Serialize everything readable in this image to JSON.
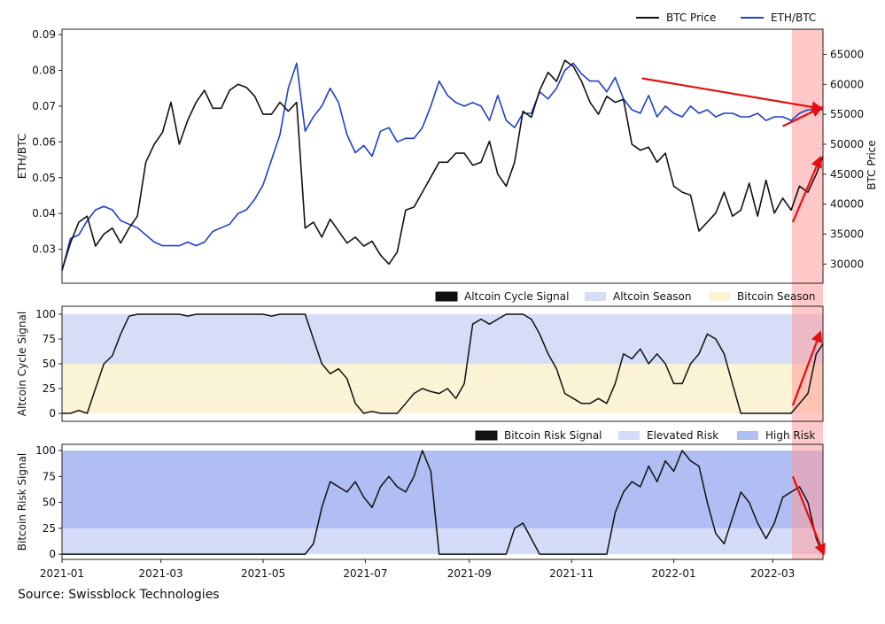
{
  "source": "Source: Swissblock Technologies",
  "colors": {
    "btc": "#111111",
    "eth": "#1f3fcc",
    "altcoin_season": "#d6ddf7",
    "bitcoin_season": "#fbf3d5",
    "elevated_risk": "#d4dcf8",
    "high_risk": "#b0bef3",
    "highlight": "#ff9a9a",
    "arrow": "#e31010"
  },
  "x_ticks": [
    "2021-01",
    "2021-03",
    "2021-05",
    "2021-07",
    "2021-09",
    "2021-11",
    "2022-01",
    "2022-03"
  ],
  "chart_data": [
    {
      "type": "line",
      "id": "top",
      "legend": [
        "BTC Price",
        "ETH/BTC"
      ],
      "ylabel_left": "ETH/BTC",
      "ylabel_right": "BTC Price",
      "left_ticks": [
        "0.03",
        "0.04",
        "0.05",
        "0.06",
        "0.07",
        "0.08",
        "0.09"
      ],
      "right_ticks": [
        "30000",
        "35000",
        "40000",
        "45000",
        "50000",
        "55000",
        "60000",
        "65000"
      ],
      "ylim_left": [
        0.0205,
        0.0915
      ],
      "ylim_right": [
        26800,
        69200
      ],
      "xlim_days": [
        0,
        454
      ],
      "series": [
        {
          "name": "BTC Price",
          "axis": "right",
          "days": [
            0,
            5,
            10,
            15,
            20,
            25,
            30,
            35,
            40,
            45,
            50,
            55,
            60,
            65,
            70,
            75,
            80,
            85,
            90,
            95,
            100,
            105,
            110,
            115,
            120,
            125,
            130,
            135,
            140,
            145,
            150,
            155,
            160,
            165,
            170,
            175,
            180,
            185,
            190,
            195,
            200,
            205,
            210,
            215,
            220,
            225,
            230,
            235,
            240,
            245,
            250,
            255,
            260,
            265,
            270,
            275,
            280,
            285,
            290,
            295,
            300,
            305,
            310,
            315,
            320,
            325,
            330,
            335,
            340,
            345,
            350,
            355,
            360,
            365,
            370,
            375,
            380,
            385,
            390,
            395,
            400,
            405,
            410,
            415,
            420,
            425,
            430,
            435,
            440,
            445,
            450,
            454
          ],
          "values": [
            29000,
            33500,
            37000,
            38000,
            33000,
            35000,
            36000,
            33500,
            36000,
            38000,
            47000,
            50000,
            52000,
            57000,
            50000,
            54000,
            57000,
            59000,
            56000,
            56000,
            59000,
            60000,
            59500,
            58000,
            55000,
            55000,
            57000,
            55500,
            57000,
            36000,
            37000,
            34500,
            37500,
            35500,
            33500,
            34500,
            33000,
            33800,
            31500,
            30000,
            32000,
            39000,
            39500,
            42000,
            44500,
            47000,
            47000,
            48500,
            48500,
            46500,
            47000,
            50500,
            45000,
            43000,
            47000,
            55500,
            54500,
            59000,
            62000,
            60500,
            64000,
            63000,
            60500,
            57000,
            55000,
            58000,
            57000,
            57500,
            50000,
            49000,
            49500,
            47000,
            48500,
            43000,
            42000,
            41500,
            35500,
            37000,
            38500,
            42000,
            38000,
            39000,
            43500,
            38000,
            44000,
            38500,
            41000,
            39000,
            43000,
            42000,
            45000,
            48000
          ]
        },
        {
          "name": "ETH/BTC",
          "axis": "left",
          "days": [
            0,
            5,
            10,
            15,
            20,
            25,
            30,
            35,
            40,
            45,
            50,
            55,
            60,
            65,
            70,
            75,
            80,
            85,
            90,
            95,
            100,
            105,
            110,
            115,
            120,
            125,
            130,
            135,
            140,
            145,
            150,
            155,
            160,
            165,
            170,
            175,
            180,
            185,
            190,
            195,
            200,
            205,
            210,
            215,
            220,
            225,
            230,
            235,
            240,
            245,
            250,
            255,
            260,
            265,
            270,
            275,
            280,
            285,
            290,
            295,
            300,
            305,
            310,
            315,
            320,
            325,
            330,
            335,
            340,
            345,
            350,
            355,
            360,
            365,
            370,
            375,
            380,
            385,
            390,
            395,
            400,
            405,
            410,
            415,
            420,
            425,
            430,
            435,
            440,
            445,
            450,
            454
          ],
          "values": [
            0.024,
            0.033,
            0.034,
            0.038,
            0.041,
            0.042,
            0.041,
            0.038,
            0.037,
            0.036,
            0.034,
            0.032,
            0.031,
            0.031,
            0.031,
            0.032,
            0.031,
            0.032,
            0.035,
            0.036,
            0.037,
            0.04,
            0.041,
            0.044,
            0.048,
            0.055,
            0.062,
            0.075,
            0.082,
            0.063,
            0.067,
            0.07,
            0.075,
            0.071,
            0.062,
            0.057,
            0.059,
            0.056,
            0.063,
            0.064,
            0.06,
            0.061,
            0.061,
            0.064,
            0.07,
            0.077,
            0.073,
            0.071,
            0.07,
            0.071,
            0.07,
            0.066,
            0.073,
            0.066,
            0.064,
            0.068,
            0.068,
            0.074,
            0.072,
            0.075,
            0.08,
            0.082,
            0.079,
            0.077,
            0.077,
            0.074,
            0.078,
            0.072,
            0.069,
            0.068,
            0.073,
            0.067,
            0.07,
            0.068,
            0.067,
            0.07,
            0.068,
            0.069,
            0.067,
            0.068,
            0.068,
            0.067,
            0.067,
            0.068,
            0.066,
            0.067,
            0.067,
            0.066,
            0.068,
            0.069,
            0.069,
            0.069
          ]
        }
      ],
      "arrows": [
        {
          "from_day": 346,
          "from_value": 61000,
          "to_day": 452,
          "to_value": 56000,
          "axis": "right"
        },
        {
          "from_day": 430,
          "from_value": 53000,
          "to_day": 452,
          "to_value": 56000,
          "axis": "right"
        },
        {
          "from_day": 436,
          "from_value": 37000,
          "to_day": 452,
          "to_value": 47500,
          "axis": "right"
        }
      ]
    },
    {
      "type": "line",
      "id": "mid",
      "legend": [
        "Altcoin Cycle Signal",
        "Altcoin Season",
        "Bitcoin Season"
      ],
      "ylabel": "Altcoin Cycle Signal",
      "ticks": [
        "0",
        "25",
        "50",
        "75",
        "100"
      ],
      "ylim": [
        -8,
        108
      ],
      "xlim_days": [
        0,
        454
      ],
      "bands": [
        {
          "name": "Altcoin Season",
          "from": 50,
          "to": 100
        },
        {
          "name": "Bitcoin Season",
          "from": 0,
          "to": 50
        }
      ],
      "series": [
        {
          "name": "Altcoin Cycle Signal",
          "days": [
            0,
            5,
            10,
            15,
            20,
            25,
            30,
            35,
            40,
            45,
            50,
            55,
            60,
            65,
            70,
            75,
            80,
            85,
            90,
            95,
            100,
            105,
            110,
            115,
            120,
            125,
            130,
            135,
            140,
            145,
            150,
            155,
            160,
            165,
            170,
            175,
            180,
            185,
            190,
            195,
            200,
            205,
            210,
            215,
            220,
            225,
            230,
            235,
            240,
            245,
            250,
            255,
            260,
            265,
            270,
            275,
            280,
            285,
            290,
            295,
            300,
            305,
            310,
            315,
            320,
            325,
            330,
            335,
            340,
            345,
            350,
            355,
            360,
            365,
            370,
            375,
            380,
            385,
            390,
            395,
            400,
            405,
            410,
            415,
            420,
            425,
            430,
            435,
            440,
            445,
            450,
            454
          ],
          "values": [
            0,
            0,
            3,
            0,
            25,
            50,
            58,
            80,
            98,
            100,
            100,
            100,
            100,
            100,
            100,
            98,
            100,
            100,
            100,
            100,
            100,
            100,
            100,
            100,
            100,
            98,
            100,
            100,
            100,
            100,
            75,
            50,
            40,
            45,
            35,
            10,
            0,
            2,
            0,
            0,
            0,
            10,
            20,
            25,
            22,
            20,
            25,
            15,
            30,
            90,
            95,
            90,
            95,
            100,
            100,
            100,
            95,
            80,
            60,
            45,
            20,
            15,
            10,
            10,
            15,
            10,
            30,
            60,
            55,
            65,
            50,
            60,
            50,
            30,
            30,
            50,
            60,
            80,
            75,
            60,
            30,
            0,
            0,
            0,
            0,
            0,
            0,
            0,
            10,
            20,
            60,
            70
          ]
        }
      ],
      "arrows": [
        {
          "from_day": 436,
          "from_value": 8,
          "to_day": 452,
          "to_value": 80
        }
      ]
    },
    {
      "type": "line",
      "id": "bot",
      "legend": [
        "Bitcoin Risk Signal",
        "Elevated Risk",
        "High Risk"
      ],
      "ylabel": "Bitcoin Risk Signal",
      "ticks": [
        "0",
        "25",
        "50",
        "75",
        "100"
      ],
      "ylim": [
        -5,
        106
      ],
      "xlim_days": [
        0,
        454
      ],
      "bands": [
        {
          "name": "Elevated Risk",
          "from": 0,
          "to": 25
        },
        {
          "name": "High Risk",
          "from": 25,
          "to": 100
        }
      ],
      "series": [
        {
          "name": "Bitcoin Risk Signal",
          "days": [
            0,
            5,
            10,
            15,
            20,
            25,
            30,
            35,
            40,
            45,
            50,
            55,
            60,
            65,
            70,
            75,
            80,
            85,
            90,
            95,
            100,
            105,
            110,
            115,
            120,
            125,
            130,
            135,
            140,
            145,
            150,
            155,
            160,
            165,
            170,
            175,
            180,
            185,
            190,
            195,
            200,
            205,
            210,
            215,
            220,
            225,
            230,
            235,
            240,
            245,
            250,
            255,
            260,
            265,
            270,
            275,
            280,
            285,
            290,
            295,
            300,
            305,
            310,
            315,
            320,
            325,
            330,
            335,
            340,
            345,
            350,
            355,
            360,
            365,
            370,
            375,
            380,
            385,
            390,
            395,
            400,
            405,
            410,
            415,
            420,
            425,
            430,
            435,
            440,
            445,
            450,
            454
          ],
          "values": [
            0,
            0,
            0,
            0,
            0,
            0,
            0,
            0,
            0,
            0,
            0,
            0,
            0,
            0,
            0,
            0,
            0,
            0,
            0,
            0,
            0,
            0,
            0,
            0,
            0,
            0,
            0,
            0,
            0,
            0,
            10,
            45,
            70,
            65,
            60,
            70,
            55,
            45,
            65,
            75,
            65,
            60,
            75,
            100,
            80,
            0,
            0,
            0,
            0,
            0,
            0,
            0,
            0,
            0,
            25,
            30,
            15,
            0,
            0,
            0,
            0,
            0,
            0,
            0,
            0,
            0,
            40,
            60,
            70,
            65,
            85,
            70,
            90,
            80,
            100,
            90,
            85,
            50,
            20,
            10,
            35,
            60,
            50,
            30,
            15,
            30,
            55,
            60,
            65,
            50,
            15,
            0
          ]
        }
      ],
      "arrows": [
        {
          "from_day": 436,
          "from_value": 75,
          "to_day": 454,
          "to_value": 2
        }
      ]
    }
  ]
}
